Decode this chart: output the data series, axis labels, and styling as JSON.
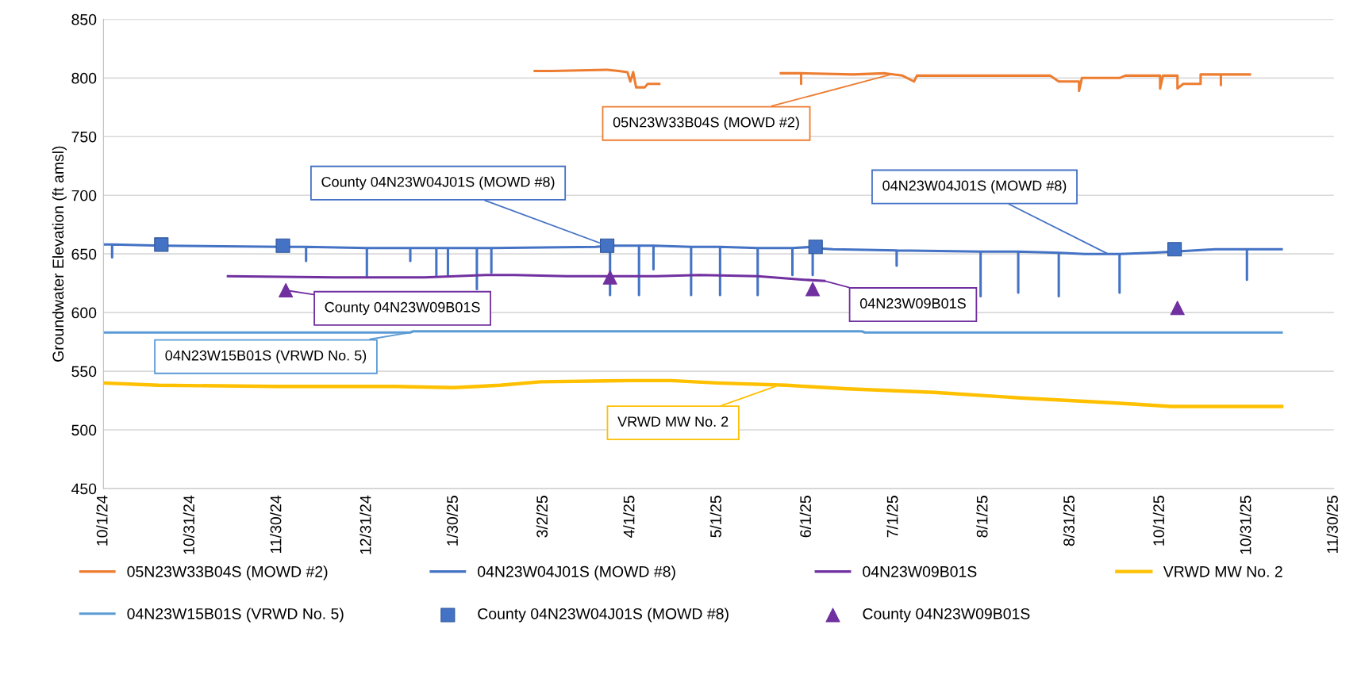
{
  "chart_data": {
    "type": "line",
    "ylabel": "Groundwater Elevation (ft amsl)",
    "xlim": [
      "2024-10-01",
      "2025-11-30"
    ],
    "xticks": [
      {
        "value": "2024-10-01",
        "label": "10/1/24"
      },
      {
        "value": "2024-10-31",
        "label": "10/31/24"
      },
      {
        "value": "2024-11-30",
        "label": "11/30/24"
      },
      {
        "value": "2024-12-31",
        "label": "12/31/24"
      },
      {
        "value": "2025-01-30",
        "label": "1/30/25"
      },
      {
        "value": "2025-03-02",
        "label": "3/2/25"
      },
      {
        "value": "2025-04-01",
        "label": "4/1/25"
      },
      {
        "value": "2025-05-01",
        "label": "5/1/25"
      },
      {
        "value": "2025-06-01",
        "label": "6/1/25"
      },
      {
        "value": "2025-07-01",
        "label": "7/1/25"
      },
      {
        "value": "2025-08-01",
        "label": "8/1/25"
      },
      {
        "value": "2025-08-31",
        "label": "8/31/25"
      },
      {
        "value": "2025-10-01",
        "label": "10/1/25"
      },
      {
        "value": "2025-10-31",
        "label": "10/31/25"
      },
      {
        "value": "2025-11-30",
        "label": "11/30/25"
      }
    ],
    "ylim": [
      450,
      850
    ],
    "yticks": [
      450,
      500,
      550,
      600,
      650,
      700,
      750,
      800,
      850
    ],
    "grid": "y",
    "legend": "bottom",
    "series": [
      {
        "name": "05N23W33B04S (MOWD #2)",
        "color": "#ed7d31",
        "x": [
          "2025-02-27",
          "2025-03-05",
          "2025-03-24",
          "2025-03-28",
          "2025-03-31",
          "2025-04-01",
          "2025-04-02",
          "2025-04-03",
          "2025-04-06",
          "2025-04-07",
          "2025-04-11",
          "2025-05-01",
          "2025-05-23",
          "2025-05-30",
          "2025-05-30",
          "2025-05-30",
          "2025-06-17",
          "2025-06-28",
          "2025-07-04",
          "2025-07-08",
          "2025-07-09",
          "2025-08-24",
          "2025-08-27",
          "2025-09-03",
          "2025-09-03",
          "2025-09-04",
          "2025-09-17",
          "2025-09-19",
          "2025-10-01",
          "2025-10-01",
          "2025-10-02",
          "2025-10-07",
          "2025-10-07",
          "2025-10-09",
          "2025-10-15",
          "2025-10-15",
          "2025-10-22",
          "2025-10-22",
          "2025-10-22",
          "2025-11-01"
        ],
        "values": [
          806,
          806,
          807,
          806,
          805,
          797,
          805,
          792,
          792,
          795,
          795,
          null,
          804,
          804,
          795,
          804,
          803,
          804,
          802,
          797,
          802,
          802,
          797,
          797,
          789,
          800,
          800,
          802,
          802,
          791,
          802,
          802,
          791,
          795,
          795,
          803,
          803,
          794,
          803,
          803
        ]
      },
      {
        "name": "04N23W04J01S (MOWD #8)",
        "color": "#4472c4",
        "x": [
          "2024-10-01",
          "2024-10-04",
          "2024-10-04",
          "2024-10-04",
          "2024-10-21",
          "2024-12-02",
          "2024-12-10",
          "2024-12-10",
          "2024-12-10",
          "2024-12-31",
          "2024-12-31",
          "2024-12-31",
          "2025-01-15",
          "2025-01-15",
          "2025-01-15",
          "2025-01-24",
          "2025-01-24",
          "2025-01-24",
          "2025-01-28",
          "2025-01-28",
          "2025-01-28",
          "2025-02-07",
          "2025-02-07",
          "2025-02-07",
          "2025-02-12",
          "2025-02-12",
          "2025-02-12",
          "2025-03-20",
          "2025-03-25",
          "2025-03-25",
          "2025-03-25",
          "2025-04-04",
          "2025-04-04",
          "2025-04-04",
          "2025-04-09",
          "2025-04-09",
          "2025-04-09",
          "2025-04-22",
          "2025-04-22",
          "2025-04-22",
          "2025-05-02",
          "2025-05-02",
          "2025-05-02",
          "2025-05-15",
          "2025-05-15",
          "2025-05-15",
          "2025-05-27",
          "2025-05-27",
          "2025-05-27",
          "2025-06-03",
          "2025-06-03",
          "2025-06-03",
          "2025-06-10",
          "2025-07-02",
          "2025-07-02",
          "2025-07-02",
          "2025-07-31",
          "2025-07-31",
          "2025-07-31",
          "2025-08-13",
          "2025-08-13",
          "2025-08-13",
          "2025-08-27",
          "2025-08-27",
          "2025-08-27",
          "2025-09-05",
          "2025-09-17",
          "2025-09-17",
          "2025-09-17",
          "2025-09-28",
          "2025-10-06",
          "2025-10-20",
          "2025-10-31",
          "2025-10-31",
          "2025-10-31",
          "2025-11-12"
        ],
        "values": [
          658,
          658,
          647,
          658,
          657,
          656,
          656,
          644,
          656,
          655,
          630,
          655,
          655,
          644,
          655,
          655,
          632,
          655,
          655,
          632,
          655,
          655,
          620,
          655,
          655,
          634,
          655,
          656,
          657,
          615,
          657,
          657,
          615,
          657,
          657,
          637,
          657,
          656,
          615,
          656,
          656,
          615,
          656,
          655,
          615,
          655,
          655,
          632,
          655,
          656,
          632,
          655,
          654,
          653,
          640,
          653,
          652,
          614,
          652,
          652,
          617,
          652,
          651,
          614,
          651,
          650,
          650,
          617,
          650,
          651,
          652,
          654,
          654,
          628,
          654,
          654
        ]
      },
      {
        "name": "04N23W09B01S",
        "color": "#7030a0",
        "x": [
          "2024-11-13",
          "2024-12-20",
          "2025-01-20",
          "2025-02-10",
          "2025-02-20",
          "2025-03-10",
          "2025-04-10",
          "2025-04-25",
          "2025-05-15",
          "2025-05-31",
          "2025-06-07"
        ],
        "values": [
          631,
          630,
          630,
          632,
          632,
          631,
          631,
          632,
          631,
          628,
          627
        ]
      },
      {
        "name": "VRWD MW No. 2",
        "color": "#ffc000",
        "x": [
          "2024-10-01",
          "2024-10-20",
          "2024-11-30",
          "2025-01-10",
          "2025-01-30",
          "2025-02-15",
          "2025-03-01",
          "2025-04-01",
          "2025-04-15",
          "2025-05-01",
          "2025-05-25",
          "2025-06-15",
          "2025-07-15",
          "2025-08-15",
          "2025-09-15",
          "2025-10-05",
          "2025-11-12"
        ],
        "values": [
          540,
          538,
          537,
          537,
          536,
          538,
          541,
          542,
          542,
          540,
          538,
          535,
          532,
          527,
          523,
          520,
          520
        ]
      },
      {
        "name": "04N23W15B01S (VRWD No. 5)",
        "color": "#5b9bd5",
        "x": [
          "2024-10-01",
          "2025-01-15",
          "2025-01-16",
          "2025-06-20",
          "2025-06-21",
          "2025-11-12"
        ],
        "values": [
          583,
          583,
          584,
          584,
          583,
          583
        ]
      },
      {
        "name": "County 04N23W04J01S (MOWD #8)",
        "color": "#4472c4",
        "type": "scatter",
        "marker": "square",
        "x": [
          "2024-10-21",
          "2024-12-02",
          "2025-03-24",
          "2025-06-04",
          "2025-10-06"
        ],
        "values": [
          658,
          657,
          657,
          656,
          654
        ]
      },
      {
        "name": "County 04N23W09B01S",
        "color": "#7030a0",
        "type": "scatter",
        "marker": "triangle",
        "x": [
          "2024-12-03",
          "2025-03-25",
          "2025-06-03",
          "2025-10-07"
        ],
        "values": [
          619,
          630,
          620,
          604
        ]
      }
    ],
    "annotations": [
      {
        "text": "05N23W33B04S (MOWD #2)",
        "x": "2025-06-30",
        "y": 803
      },
      {
        "text": "County 04N23W04J01S (MOWD #8)",
        "x": "2025-03-24",
        "y": 657
      },
      {
        "text": "04N23W04J01S (MOWD #8)",
        "x": "2025-09-13",
        "y": 650
      },
      {
        "text": "County 04N23W09B01S",
        "x": "2024-12-03",
        "y": 619
      },
      {
        "text": "04N23W09B01S",
        "x": "2025-06-07",
        "y": 627
      },
      {
        "text": "04N23W15B01S (VRWD No. 5)",
        "x": "2025-01-15",
        "y": 583
      },
      {
        "text": "VRWD MW No. 2",
        "x": "2025-05-21",
        "y": 537
      }
    ]
  }
}
